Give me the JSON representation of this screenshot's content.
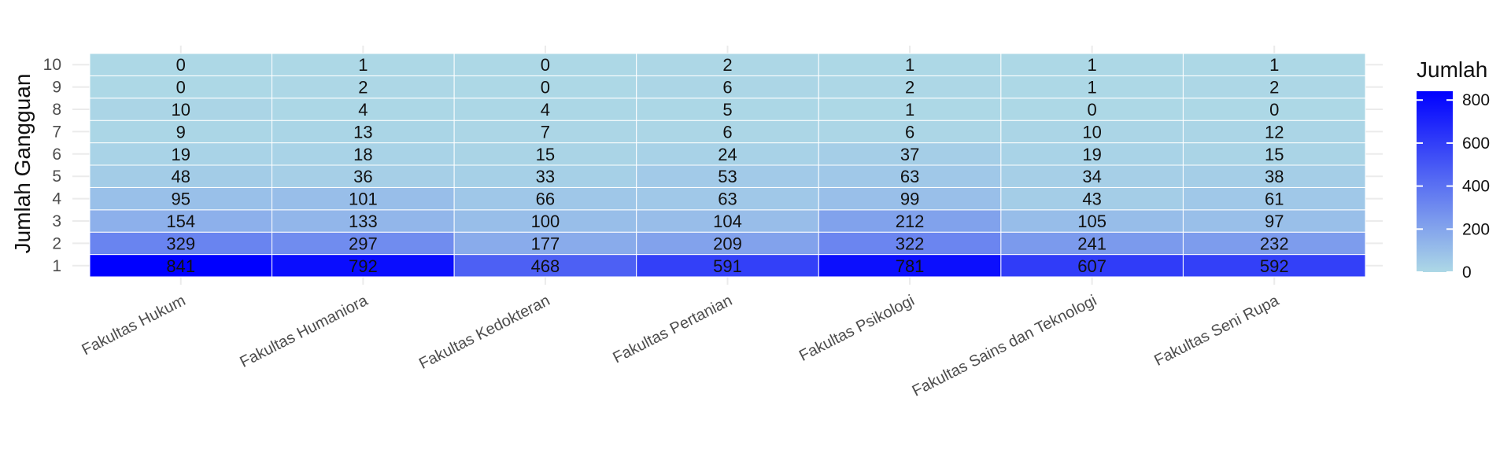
{
  "chart_data": {
    "type": "heatmap",
    "title": "",
    "xlabel": "",
    "ylabel": "Jumlah Gangguan",
    "x_categories": [
      "Fakultas Hukum",
      "Fakultas Humaniora",
      "Fakultas Kedokteran",
      "Fakultas Pertanian",
      "Fakultas Psikologi",
      "Fakultas Sains dan Teknologi",
      "Fakultas Seni Rupa"
    ],
    "y_categories": [
      "1",
      "2",
      "3",
      "4",
      "5",
      "6",
      "7",
      "8",
      "9",
      "10"
    ],
    "values": [
      [
        841,
        792,
        468,
        591,
        781,
        607,
        592
      ],
      [
        329,
        297,
        177,
        209,
        322,
        241,
        232
      ],
      [
        154,
        133,
        100,
        104,
        212,
        105,
        97
      ],
      [
        95,
        101,
        66,
        63,
        99,
        43,
        61
      ],
      [
        48,
        36,
        33,
        53,
        63,
        34,
        38
      ],
      [
        19,
        18,
        15,
        24,
        37,
        19,
        15
      ],
      [
        9,
        13,
        7,
        6,
        6,
        10,
        12
      ],
      [
        10,
        4,
        4,
        5,
        1,
        0,
        0
      ],
      [
        0,
        2,
        0,
        6,
        2,
        1,
        2
      ],
      [
        0,
        1,
        0,
        2,
        1,
        1,
        1
      ]
    ],
    "legend": {
      "title": "Jumlah",
      "ticks": [
        0,
        200,
        400,
        600,
        800
      ],
      "range": [
        0,
        841
      ],
      "low_color": "#add8e6",
      "high_color": "#0000ff",
      "placement": "right"
    },
    "grid": true,
    "cell_border_color": "#ffffff",
    "label_color": "#111111"
  }
}
